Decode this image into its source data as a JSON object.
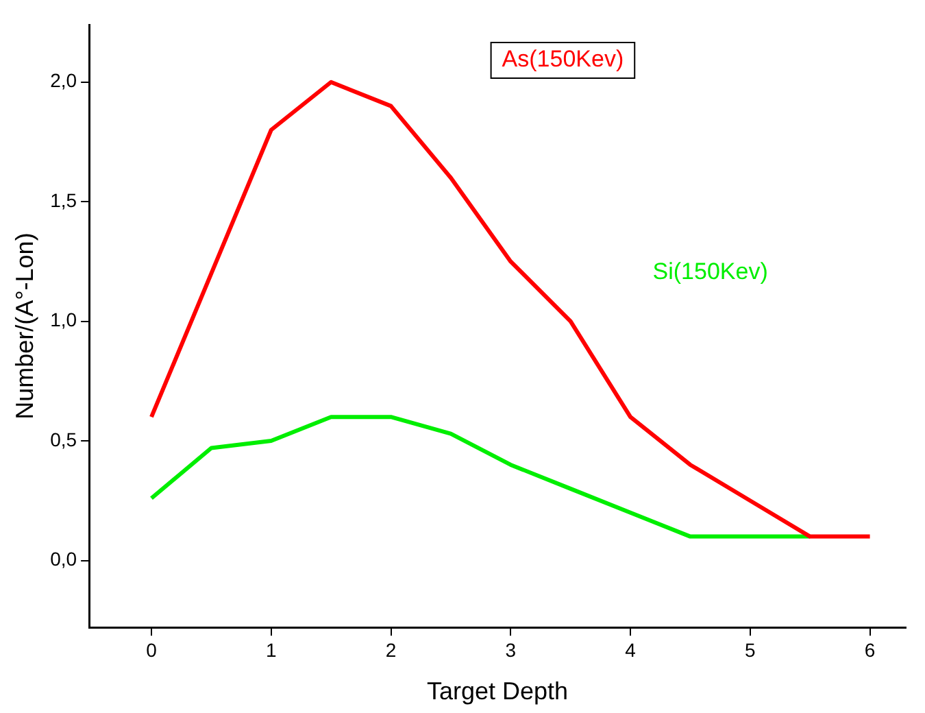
{
  "chart_data": {
    "type": "line",
    "xlabel": "Target Depth",
    "ylabel": "Number/(A°-Lon)",
    "xlim": [
      -0.52,
      6.3
    ],
    "xticks": [
      0,
      1,
      2,
      3,
      4,
      5,
      6
    ],
    "ylim": [
      -0.28,
      2.24
    ],
    "yticks": [
      {
        "value": 0,
        "label": "0,0"
      },
      {
        "value": 0.5,
        "label": "0,5"
      },
      {
        "value": 1,
        "label": "1,0"
      },
      {
        "value": 1.5,
        "label": "1,5"
      },
      {
        "value": 2,
        "label": "2,0"
      }
    ],
    "grid": false,
    "legend": false,
    "marker": "none",
    "line_style": "solid",
    "series": [
      {
        "name": "As(150Kev)",
        "color": "#ff0000",
        "x": [
          0,
          0.5,
          1,
          1.5,
          2,
          2.5,
          3,
          3.5,
          4,
          4.5,
          5,
          5.5,
          6
        ],
        "values": [
          0.6,
          1.2,
          1.8,
          2.0,
          1.9,
          1.6,
          1.25,
          1.0,
          0.6,
          0.4,
          0.25,
          0.1,
          0.1
        ]
      },
      {
        "name": "Si(150Kev)",
        "color": "#00ee00",
        "x": [
          0,
          0.5,
          1,
          1.5,
          2,
          2.5,
          3,
          3.5,
          4,
          4.5,
          5,
          5.5
        ],
        "values": [
          0.26,
          0.47,
          0.5,
          0.6,
          0.6,
          0.53,
          0.4,
          0.3,
          0.2,
          0.1,
          0.1,
          0.1
        ]
      }
    ]
  }
}
